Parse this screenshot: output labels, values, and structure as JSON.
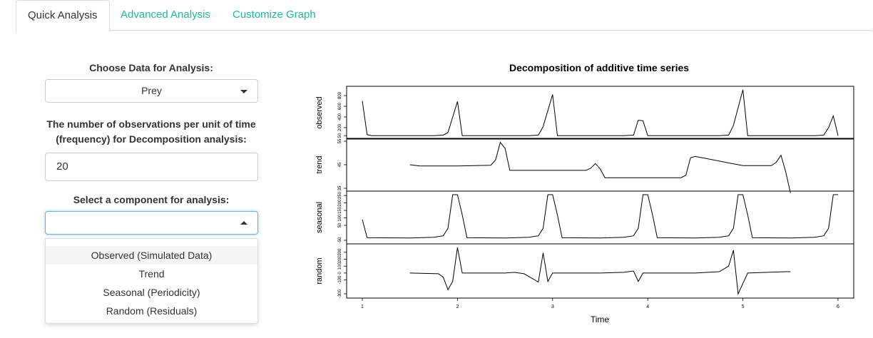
{
  "tabs": [
    "Quick Analysis",
    "Advanced Analysis",
    "Customize Graph"
  ],
  "active_tab": 0,
  "sidebar": {
    "data_label": "Choose Data for Analysis:",
    "data_value": "Prey",
    "freq_label_line1": "The number of observations per unit of time",
    "freq_label_line2": "(frequency) for Decomposition analysis:",
    "freq_value": "20",
    "component_label": "Select a component for analysis:",
    "component_value": "",
    "component_options": [
      "Observed (Simulated Data)",
      "Trend",
      "Seasonal (Periodicity)",
      "Random (Residuals)"
    ],
    "highlighted_option": 0
  },
  "chart_data": {
    "type": "line",
    "title": "Decomposition of additive time series",
    "xlabel": "Time",
    "xlim": [
      1,
      6
    ],
    "x_ticks": [
      "1",
      "2",
      "3",
      "4",
      "5",
      "6"
    ],
    "panels": [
      {
        "name": "observed",
        "ylim": [
          40,
          920
        ],
        "y_ticks": [
          "50",
          "200",
          "400",
          "600",
          "800"
        ],
        "x": [
          1,
          1.05,
          1.1,
          1.75,
          1.85,
          1.9,
          2.0,
          2.05,
          2.1,
          2.75,
          2.85,
          2.9,
          3.0,
          3.05,
          3.1,
          3.75,
          3.85,
          3.9,
          3.95,
          4.0,
          4.05,
          4.75,
          4.85,
          4.9,
          5.0,
          5.05,
          5.1,
          5.75,
          5.85,
          5.9,
          5.95,
          6.0
        ],
        "y": [
          700,
          70,
          50,
          50,
          60,
          110,
          690,
          50,
          50,
          50,
          60,
          220,
          820,
          50,
          50,
          50,
          60,
          340,
          330,
          50,
          50,
          50,
          60,
          240,
          910,
          50,
          50,
          50,
          60,
          200,
          420,
          50
        ]
      },
      {
        "name": "trend",
        "ylim": [
          35,
          55
        ],
        "y_ticks": [
          "35",
          "45",
          "55"
        ],
        "x": [
          1.5,
          1.6,
          2.0,
          2.35,
          2.4,
          2.45,
          2.5,
          2.55,
          3.0,
          3.35,
          3.4,
          3.45,
          3.5,
          3.55,
          4.0,
          4.35,
          4.4,
          4.45,
          4.5,
          5.0,
          5.3,
          5.35,
          5.4,
          5.45,
          5.5
        ],
        "y": [
          45,
          44.5,
          44.5,
          44.8,
          47,
          54.5,
          52,
          42.6,
          42.6,
          42.6,
          43.5,
          45.5,
          43.2,
          39.5,
          39.5,
          39.5,
          40.5,
          48,
          48.5,
          44.6,
          44.6,
          46,
          49,
          42,
          33
        ]
      },
      {
        "name": "seasonal",
        "ylim": [
          -55,
          260
        ],
        "y_ticks": [
          "-50",
          "50",
          "100",
          "150",
          "200",
          "250"
        ],
        "x": [
          1.0,
          1.05,
          1.5,
          1.75,
          1.85,
          1.9,
          1.95,
          2.0,
          2.05,
          2.1,
          2.5,
          2.75,
          2.85,
          2.9,
          2.95,
          3.0,
          3.05,
          3.1,
          3.5,
          3.75,
          3.85,
          3.9,
          3.95,
          4.0,
          4.05,
          4.1,
          4.5,
          4.75,
          4.85,
          4.9,
          4.95,
          5.0,
          5.05,
          5.1,
          5.5,
          5.75,
          5.85,
          5.9,
          5.95,
          6.0
        ],
        "y": [
          88,
          -33,
          -35,
          -30,
          -20,
          30,
          255,
          255,
          120,
          -33,
          -35,
          -30,
          -20,
          30,
          255,
          255,
          120,
          -33,
          -35,
          -30,
          -20,
          30,
          255,
          255,
          120,
          -33,
          -35,
          -30,
          -20,
          30,
          255,
          255,
          120,
          -33,
          -35,
          -30,
          -20,
          30,
          255,
          255
        ]
      },
      {
        "name": "random",
        "ylim": [
          -320,
          380
        ],
        "y_ticks": [
          "-300",
          "-100",
          "0",
          "100",
          "200",
          "300"
        ],
        "x": [
          1.5,
          1.8,
          1.85,
          1.9,
          1.95,
          2.0,
          2.05,
          2.5,
          2.6,
          2.7,
          2.85,
          2.9,
          2.95,
          3.0,
          3.05,
          3.5,
          3.75,
          3.85,
          3.9,
          3.95,
          4.0,
          4.05,
          4.5,
          4.75,
          4.85,
          4.9,
          4.95,
          5.0,
          5.05,
          5.45,
          5.5
        ],
        "y": [
          0,
          -10,
          -60,
          -240,
          -120,
          370,
          0,
          0,
          10,
          -10,
          -130,
          290,
          -120,
          0,
          0,
          0,
          10,
          30,
          -120,
          0,
          0,
          0,
          0,
          20,
          100,
          330,
          -300,
          -150,
          0,
          20,
          20
        ]
      }
    ]
  }
}
